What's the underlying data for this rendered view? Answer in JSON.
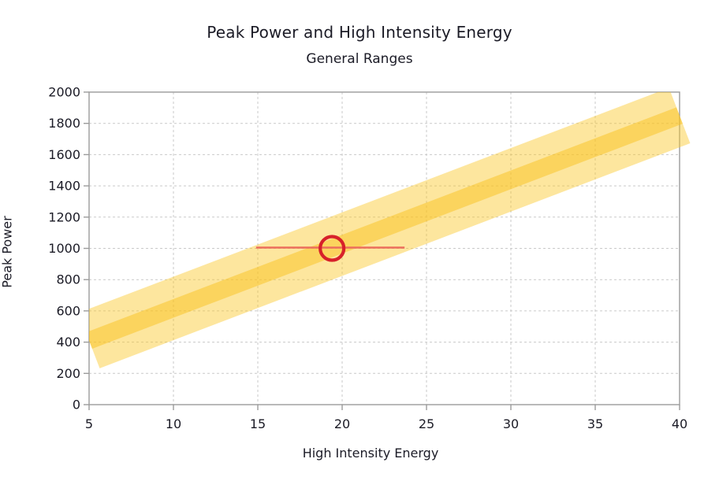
{
  "chart": {
    "title": "Peak Power and High Intensity Energy",
    "subtitle": "General Ranges",
    "x_axis_title": "High Intensity Energy",
    "y_axis_title": "Peak Power"
  },
  "chart_data": {
    "type": "area",
    "title": "Peak Power and High Intensity Energy",
    "subtitle": "General Ranges",
    "xlabel": "High Intensity Energy",
    "ylabel": "Peak Power",
    "xlim": [
      5,
      40
    ],
    "ylim": [
      0,
      2000
    ],
    "xticks": [
      5,
      10,
      15,
      20,
      25,
      30,
      35,
      40
    ],
    "yticks": [
      0,
      200,
      400,
      600,
      800,
      1000,
      1200,
      1400,
      1600,
      1800,
      2000
    ],
    "grid": "dashed",
    "legend": "none",
    "series": [
      {
        "name": "general-range-outer-band",
        "kind": "band",
        "x": [
          5,
          40
        ],
        "center": [
          410,
          1850
        ],
        "half_width": 190
      },
      {
        "name": "general-range-inner-band",
        "kind": "band",
        "x": [
          5,
          40
        ],
        "center": [
          410,
          1850
        ],
        "half_width": 56
      },
      {
        "name": "horizontal-error-line",
        "kind": "line",
        "x": [
          14.9,
          23.7
        ],
        "y": [
          1005,
          1005
        ]
      },
      {
        "name": "highlight-point",
        "kind": "open-circle-marker",
        "x": 19.4,
        "y": 1000
      }
    ],
    "colors": {
      "band_base": "#FAC828",
      "band_outer_rgba": "rgba(250,200,40,0.45)",
      "band_inner_rgba": "rgba(249,193,30,0.50)",
      "error_line": "#EC6E5C",
      "marker_stroke": "#D7212A",
      "grid": "#c9c9c9",
      "axis_frame": "#9b9b9b",
      "text": "#1b1b26"
    }
  }
}
